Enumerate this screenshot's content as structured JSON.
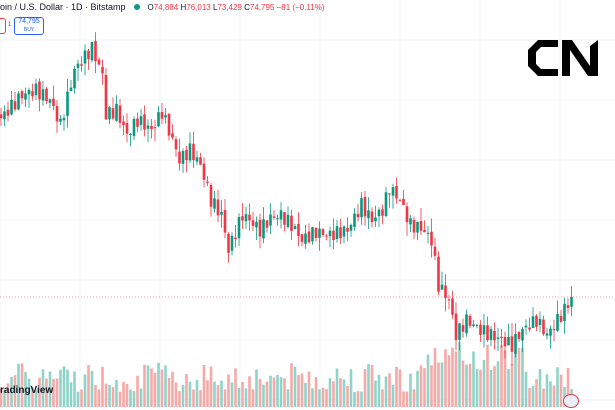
{
  "header": {
    "symbol": "oin / U.S. Dollar · 1D · Bitstamp",
    "open_label": "O",
    "open": "74,884",
    "high_label": "H",
    "high": "76,013",
    "low_label": "L",
    "low": "73,429",
    "close_label": "C",
    "close": "74,795",
    "change": "−81 (−0.11%)",
    "status_color": "#089981"
  },
  "trade": {
    "spread": "1",
    "buy_price": "74,795",
    "buy_label": "BUY"
  },
  "branding": {
    "tradingview": "radingView",
    "logo_text": "CN"
  },
  "colors": {
    "up": "#089981",
    "down": "#f23645",
    "vol_up": "#8fd4c8",
    "vol_down": "#f7a9a7"
  },
  "chart_data": {
    "type": "candlestick",
    "last_price": 74795,
    "keypoints": {
      "bar_index": [
        0,
        6,
        10,
        14,
        17,
        21,
        26,
        29,
        30,
        33,
        36,
        39,
        43,
        46,
        49,
        51,
        54,
        57,
        60,
        63,
        65,
        69,
        71,
        74,
        77,
        80,
        83,
        86,
        90,
        94,
        99,
        103,
        106,
        109,
        111,
        114,
        117,
        120,
        123,
        125,
        128,
        130,
        133,
        137,
        140,
        143,
        146,
        149,
        153,
        156,
        159,
        161,
        163
      ],
      "close": [
        98400,
        101460,
        102120,
        100800,
        97500,
        104760,
        107660,
        104100,
        98820,
        99480,
        96180,
        98160,
        96840,
        99220,
        95520,
        92880,
        94200,
        92220,
        87600,
        85620,
        81000,
        85620,
        84960,
        83640,
        85220,
        85620,
        84300,
        82320,
        83380,
        82980,
        83640,
        86940,
        84960,
        86280,
        89180,
        87600,
        84300,
        83900,
        82320,
        76380,
        74400,
        69780,
        71760,
        70440,
        69780,
        69120,
        68460,
        70440,
        71760,
        69780,
        71760,
        73080,
        74795
      ]
    }
  }
}
